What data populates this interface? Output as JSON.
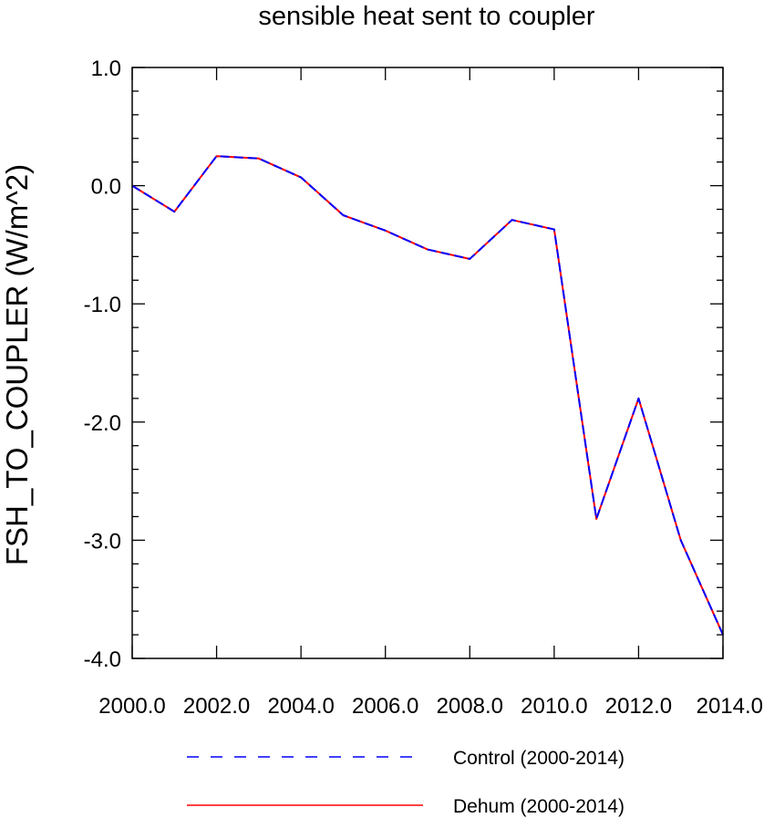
{
  "chart_data": {
    "type": "line",
    "title": "sensible heat sent to coupler",
    "xlabel": "",
    "ylabel": "FSH_TO_COUPLER  (W/m^2)",
    "xlim": [
      2000,
      2014
    ],
    "ylim": [
      -4.0,
      1.0
    ],
    "x_ticks": [
      2000,
      2002,
      2004,
      2006,
      2008,
      2010,
      2012,
      2014
    ],
    "x_tick_labels": [
      "2000.0",
      "2002.0",
      "2004.0",
      "2006.0",
      "2008.0",
      "2010.0",
      "2012.0",
      "2014.0"
    ],
    "y_ticks": [
      1.0,
      0.0,
      -1.0,
      -2.0,
      -3.0,
      -4.0
    ],
    "y_tick_labels": [
      "1.0",
      "0.0",
      "-1.0",
      "-2.0",
      "-3.0",
      "-4.0"
    ],
    "x": [
      2000,
      2001,
      2002,
      2003,
      2004,
      2005,
      2006,
      2007,
      2008,
      2009,
      2010,
      2011,
      2012,
      2013,
      2014
    ],
    "series": [
      {
        "name": "Control (2000-2014)",
        "color": "#0000ff",
        "dash": "dashed",
        "values": [
          0.0,
          -0.22,
          0.25,
          0.23,
          0.07,
          -0.25,
          -0.38,
          -0.54,
          -0.62,
          -0.29,
          -0.37,
          -2.82,
          -1.8,
          -3.0,
          -3.8
        ]
      },
      {
        "name": "Dehum (2000-2014)",
        "color": "#ff0000",
        "dash": "solid",
        "values": [
          0.0,
          -0.22,
          0.25,
          0.23,
          0.07,
          -0.25,
          -0.38,
          -0.54,
          -0.62,
          -0.29,
          -0.37,
          -2.82,
          -1.8,
          -3.0,
          -3.8
        ]
      }
    ],
    "grid": false,
    "legend_position": "bottom"
  }
}
